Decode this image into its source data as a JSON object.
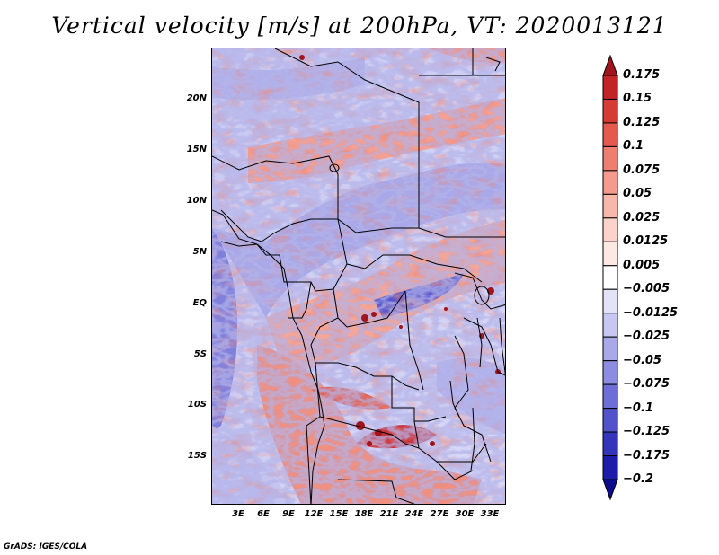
{
  "title": "Vertical velocity [m/s] at 200hPa, VT: 2020013121",
  "credit": "GrADS: IGES/COLA",
  "map": {
    "region": "Central Africa",
    "latitude_labels": [
      "20N",
      "15N",
      "10N",
      "5N",
      "EQ",
      "5S",
      "10S",
      "15S"
    ],
    "latitude_values": [
      20,
      15,
      10,
      5,
      0,
      -5,
      -10,
      -15
    ],
    "longitude_labels": [
      "3E",
      "6E",
      "9E",
      "12E",
      "15E",
      "18E",
      "21E",
      "24E",
      "27E",
      "30E",
      "33E"
    ],
    "longitude_values": [
      3,
      6,
      9,
      12,
      15,
      18,
      21,
      24,
      27,
      30,
      33
    ],
    "lon_range": [
      0,
      35
    ],
    "lat_range": [
      -19.5,
      24.8
    ]
  },
  "colorbar": {
    "labels": [
      "0.175",
      "0.15",
      "0.125",
      "0.1",
      "0.075",
      "0.05",
      "0.025",
      "0.0125",
      "0.005",
      "−0.005",
      "−0.0125",
      "−0.025",
      "−0.05",
      "−0.075",
      "−0.1",
      "−0.125",
      "−0.175",
      "−0.2"
    ],
    "colors": [
      "#a0141e",
      "#c12326",
      "#d53a35",
      "#e45a4f",
      "#ee7e70",
      "#f49a8e",
      "#f8b7ab",
      "#fbd3cb",
      "#fde9e4",
      "#ffffff",
      "#e3e3f8",
      "#c7c7f1",
      "#a9a9ea",
      "#8c8ce2",
      "#6e6ed8",
      "#5252cb",
      "#3535bb",
      "#1d1daa",
      "#0c0c8c"
    ]
  }
}
